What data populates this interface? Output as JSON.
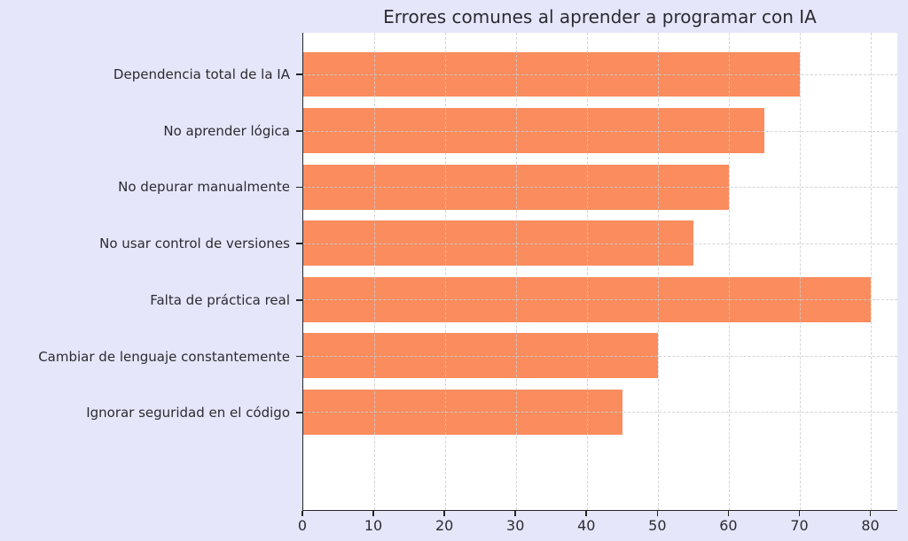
{
  "chart_data": {
    "type": "bar",
    "orientation": "horizontal",
    "title": "Errores comunes al aprender a programar con IA",
    "categories": [
      "Dependencia total de la IA",
      "No aprender lógica",
      "No depurar manualmente",
      "No usar control de versiones",
      "Falta de práctica real",
      "Cambiar de lenguaje constantemente",
      "Ignorar seguridad en el código"
    ],
    "values": [
      70,
      65,
      60,
      55,
      80,
      50,
      45
    ],
    "xlabel": "",
    "ylabel": "",
    "xticks": [
      0,
      10,
      20,
      30,
      40,
      50,
      60,
      70,
      80
    ],
    "xlim": [
      0,
      83.8
    ],
    "grid": true,
    "grid_style": "dashed",
    "legend": null,
    "colors": {
      "bar": "#FA8C5E",
      "page_background": "#E6E6FA",
      "plot_background": "#FFFFFF",
      "grid": "#CDCDCD",
      "spine": "#252525",
      "text": "#2B2B33"
    },
    "layout_hints": {
      "bar_fraction_of_slot": 0.8,
      "axis_padding_slots": 0.74,
      "spines": [
        "left",
        "bottom"
      ]
    }
  }
}
